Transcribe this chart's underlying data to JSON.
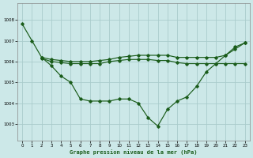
{
  "title": "Graphe pression niveau de la mer (hPa)",
  "background_color": "#cce8e8",
  "grid_color": "#aacccc",
  "line_color": "#1a5c1a",
  "x_ticks": [
    0,
    1,
    2,
    3,
    4,
    5,
    6,
    7,
    8,
    9,
    10,
    11,
    12,
    13,
    14,
    15,
    16,
    17,
    18,
    19,
    20,
    21,
    22,
    23
  ],
  "y_ticks": [
    1003,
    1004,
    1005,
    1006,
    1007,
    1008
  ],
  "ylim": [
    1002.2,
    1008.8
  ],
  "xlim": [
    -0.5,
    23.5
  ],
  "line1_x": [
    0,
    1,
    2,
    3,
    4,
    5,
    6,
    7,
    8,
    9,
    10,
    11,
    12,
    13,
    14,
    15,
    16,
    17,
    18,
    19,
    20,
    21,
    22,
    23
  ],
  "line1_y": [
    1007.8,
    1007.0,
    1006.2,
    1005.8,
    1005.3,
    1005.0,
    1004.2,
    1004.1,
    1004.1,
    1004.1,
    1004.2,
    1004.2,
    1004.0,
    1003.3,
    1002.9,
    1003.7,
    1004.1,
    1004.3,
    1004.8,
    1005.5,
    1005.9,
    1006.3,
    1006.7,
    1006.9
  ],
  "line2_x": [
    2,
    3,
    4,
    5,
    6,
    7,
    8,
    9,
    10,
    11,
    12,
    13,
    14,
    15,
    16,
    17,
    18,
    19,
    20,
    21,
    22,
    23
  ],
  "line2_y": [
    1006.15,
    1006.0,
    1005.95,
    1005.9,
    1005.9,
    1005.9,
    1005.9,
    1006.0,
    1006.05,
    1006.1,
    1006.1,
    1006.1,
    1006.05,
    1006.05,
    1005.95,
    1005.9,
    1005.9,
    1005.9,
    1005.9,
    1005.9,
    1005.9,
    1005.9
  ],
  "line3_x": [
    2,
    3,
    4,
    5,
    6,
    7,
    8,
    9,
    10,
    11,
    12,
    13,
    14,
    15,
    16,
    17,
    18,
    19,
    20,
    21,
    22,
    23
  ],
  "line3_y": [
    1006.2,
    1006.1,
    1006.05,
    1006.0,
    1006.0,
    1006.0,
    1006.05,
    1006.1,
    1006.2,
    1006.25,
    1006.3,
    1006.3,
    1006.3,
    1006.3,
    1006.2,
    1006.2,
    1006.2,
    1006.2,
    1006.2,
    1006.3,
    1006.6,
    1006.9
  ]
}
